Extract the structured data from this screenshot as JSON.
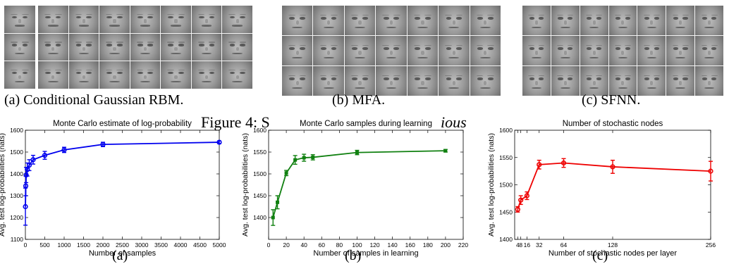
{
  "faces": {
    "captions": [
      "(a) Conditional Gaussian RBM.",
      "(b) MFA.",
      "(c) SFNN."
    ]
  },
  "figure_caption": {
    "prefix": "Figure 4:",
    "italic_text": "Samples generated from various models.",
    "visible_start": "Figure 4: S",
    "visible_mid": "ious"
  },
  "subfigure_labels": [
    "(a)",
    "(b)",
    "(c)"
  ],
  "chart_data": [
    {
      "type": "line",
      "title": "Monte Carlo estimate of log-probability",
      "xlabel": "Number of samples",
      "ylabel": "Avg. test log-probabilities (nats)",
      "xlim": [
        0,
        5000
      ],
      "ylim": [
        1100,
        1600
      ],
      "xticks": [
        0,
        500,
        1000,
        1500,
        2000,
        2500,
        3000,
        3500,
        4000,
        4500,
        5000
      ],
      "yticks": [
        1100,
        1200,
        1300,
        1400,
        1500,
        1600
      ],
      "color": "#0000ee",
      "marker": "circle",
      "grid": false,
      "x": [
        1,
        10,
        20,
        50,
        100,
        200,
        500,
        1000,
        2000,
        5000
      ],
      "y": [
        1250,
        1345,
        1395,
        1420,
        1440,
        1465,
        1485,
        1510,
        1535,
        1545
      ],
      "err": [
        85,
        45,
        35,
        30,
        25,
        20,
        18,
        12,
        10,
        6
      ]
    },
    {
      "type": "line",
      "title": "Monte Carlo samples during learning",
      "xlabel": "Number of samples in learning",
      "ylabel": "Avg. test log-probabilities (nats)",
      "xlim": [
        0,
        220
      ],
      "ylim": [
        1350,
        1600
      ],
      "xticks": [
        0,
        20,
        40,
        60,
        80,
        100,
        120,
        140,
        160,
        180,
        200,
        220
      ],
      "yticks": [
        1400,
        1450,
        1500,
        1550,
        1600
      ],
      "color": "#108010",
      "marker": "square",
      "grid": false,
      "x": [
        5,
        10,
        20,
        30,
        40,
        50,
        100,
        200
      ],
      "y": [
        1400,
        1435,
        1502,
        1532,
        1537,
        1538,
        1549,
        1553
      ],
      "err": [
        18,
        15,
        6,
        10,
        8,
        6,
        5,
        3
      ]
    },
    {
      "type": "line",
      "title": "Number of stochastic nodes",
      "xlabel": "Number of stochastic nodes per layer",
      "ylabel": "Avg. test log-probabilities (nats)",
      "xlim": [
        0,
        256
      ],
      "ylim": [
        1400,
        1600
      ],
      "xticks": [
        4,
        8,
        16,
        32,
        64,
        128,
        256
      ],
      "xticklabels": [
        "4",
        "8",
        "16",
        "32",
        "64",
        "128",
        "256"
      ],
      "yticks": [
        1400,
        1450,
        1500,
        1550,
        1600
      ],
      "color": "#ee0000",
      "marker": "circle",
      "grid": false,
      "x": [
        4,
        8,
        16,
        32,
        64,
        128,
        256
      ],
      "y": [
        1455,
        1472,
        1480,
        1537,
        1540,
        1533,
        1525
      ],
      "err": [
        5,
        8,
        7,
        8,
        8,
        12,
        18
      ]
    }
  ]
}
